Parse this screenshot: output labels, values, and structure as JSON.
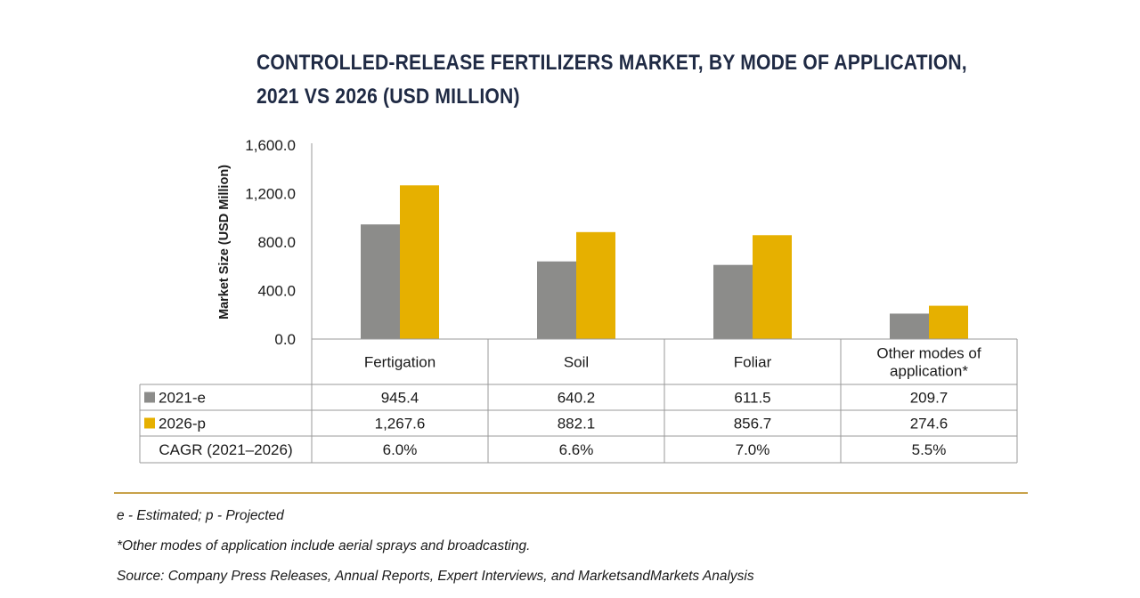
{
  "title_line1": "CONTROLLED-RELEASE FERTILIZERS MARKET, BY MODE OF APPLICATION,",
  "title_line2": "2021 VS 2026 (USD MILLION)",
  "chart_data": {
    "type": "bar",
    "title": "CONTROLLED-RELEASE FERTILIZERS MARKET, BY MODE OF APPLICATION, 2021 VS 2026 (USD MILLION)",
    "ylabel": "Market Size (USD Million)",
    "xlabel": "",
    "ylim": [
      0,
      1600
    ],
    "yticks": [
      0,
      400,
      800,
      1200,
      1600
    ],
    "ytick_labels": [
      "0.0",
      "400.0",
      "800.0",
      "1,200.0",
      "1,600.0"
    ],
    "categories": [
      "Fertigation",
      "Soil",
      "Foliar",
      "Other modes of application*"
    ],
    "category_lines": [
      [
        "Fertigation"
      ],
      [
        "Soil"
      ],
      [
        "Foliar"
      ],
      [
        "Other modes of",
        "application*"
      ]
    ],
    "series": [
      {
        "name": "2021-e",
        "color": "#8c8c8a",
        "values": [
          945.4,
          640.2,
          611.5,
          209.7
        ],
        "labels": [
          "945.4",
          "640.2",
          "611.5",
          "209.7"
        ]
      },
      {
        "name": "2026-p",
        "color": "#e6b000",
        "values": [
          1267.6,
          882.1,
          856.7,
          274.6
        ],
        "labels": [
          "1,267.6",
          "882.1",
          "856.7",
          "274.6"
        ]
      }
    ],
    "cagr": {
      "label": "CAGR (2021–2026)",
      "values": [
        "6.0%",
        "6.6%",
        "7.0%",
        "5.5%"
      ]
    }
  },
  "footnotes": {
    "estimated": "e - Estimated; p - Projected",
    "other": "*Other modes of application include aerial sprays and broadcasting.",
    "source": "Source: Company Press Releases, Annual Reports, Expert Interviews, and MarketsandMarkets Analysis"
  }
}
